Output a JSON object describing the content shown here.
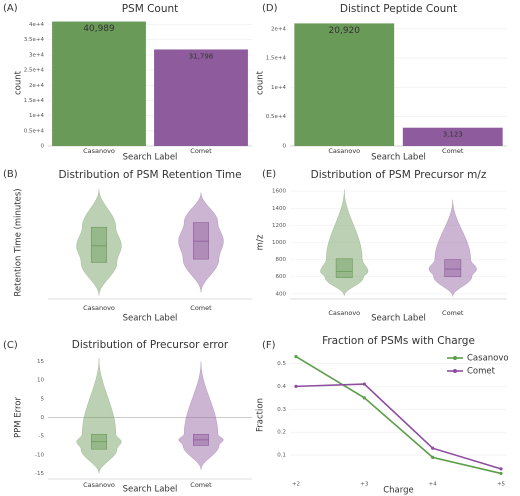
{
  "chart_data": [
    {
      "type": "bar",
      "label": "(A)",
      "title": "PSM Count",
      "xlabel": "Search Label",
      "ylabel": "count",
      "categories": [
        "Casanovo",
        "Comet"
      ],
      "values": [
        40989,
        31798
      ],
      "value_labels": [
        "40,989",
        "31,798"
      ],
      "colors": [
        "#6a9a58",
        "#8e5b9c"
      ],
      "ylim": [
        0,
        41500
      ],
      "yticks": [
        0,
        {
          "value": 5000,
          "label": "0.5e+4"
        },
        {
          "value": 10000,
          "label": "1e+4"
        },
        {
          "value": 15000,
          "label": "1.5e+4"
        },
        {
          "value": 20000,
          "label": "2e+4"
        },
        {
          "value": 25000,
          "label": "2.5e+4"
        },
        {
          "value": 30000,
          "label": "3e+4"
        },
        {
          "value": 35000,
          "label": "3.5e+4"
        },
        {
          "value": 40000,
          "label": "4e+4"
        }
      ],
      "grid": true
    },
    {
      "type": "violin",
      "label": "(B)",
      "title": "Distribution of PSM Retention Time",
      "xlabel": "Search Label",
      "ylabel": "Retention Time (minutes)",
      "categories": [
        "Casanovo",
        "Comet"
      ],
      "colors": [
        "#6a9a58",
        "#8e5b9c"
      ],
      "min": [
        0,
        5
      ],
      "q1": [
        50,
        55
      ],
      "median": [
        75,
        82
      ],
      "q3": [
        103,
        110
      ],
      "max": [
        160,
        155
      ],
      "ylim": [
        -5,
        165
      ]
    },
    {
      "type": "violin",
      "label": "(C)",
      "title": "Distribution of Precursor error",
      "xlabel": "Search Label",
      "ylabel": "PPM Error",
      "categories": [
        "Casanovo",
        "Comet"
      ],
      "colors": [
        "#6a9a58",
        "#8e5b9c"
      ],
      "min": [
        -15,
        -14
      ],
      "q1": [
        -8.5,
        -7.5
      ],
      "median": [
        -6.5,
        -6
      ],
      "q3": [
        -4.5,
        -4.5
      ],
      "max": [
        16,
        15
      ],
      "ylim": [
        -16.5,
        16.5
      ],
      "yticks": [
        -15,
        -10,
        -5,
        0,
        5,
        10,
        15
      ],
      "hline": 0
    },
    {
      "type": "bar",
      "label": "(D)",
      "title": "Distinct Peptide Count",
      "xlabel": "Search Label",
      "ylabel": "count",
      "categories": [
        "Casanovo",
        "Comet"
      ],
      "values": [
        20920,
        3123
      ],
      "value_labels": [
        "20,920",
        "3,123"
      ],
      "colors": [
        "#6a9a58",
        "#8e5b9c"
      ],
      "ylim": [
        0,
        21500
      ],
      "yticks": [
        0,
        {
          "value": 5000,
          "label": "0.5e+4"
        },
        {
          "value": 10000,
          "label": "1e+4"
        },
        {
          "value": 15000,
          "label": "1.5e+4"
        },
        {
          "value": 20000,
          "label": "2e+4"
        }
      ],
      "grid": true
    },
    {
      "type": "violin",
      "label": "(E)",
      "title": "Distribution of PSM Precursor m/z",
      "xlabel": "Search Label",
      "ylabel": "m/z",
      "categories": [
        "Casanovo",
        "Comet"
      ],
      "colors": [
        "#6a9a58",
        "#8e5b9c"
      ],
      "min": [
        380,
        370
      ],
      "q1": [
        590,
        600
      ],
      "median": [
        660,
        690
      ],
      "q3": [
        810,
        800
      ],
      "max": [
        1620,
        1500
      ],
      "ylim": [
        340,
        1660
      ],
      "yticks": [
        400,
        600,
        800,
        1000,
        1200,
        1400,
        1600
      ],
      "grid": true
    },
    {
      "type": "line",
      "label": "(F)",
      "title": "Fraction of PSMs with Charge",
      "xlabel": "Charge",
      "ylabel": "Fraction",
      "categories": [
        "+2",
        "+3",
        "+4",
        "+5"
      ],
      "series": [
        {
          "name": "Casanovo",
          "color": "#5a9e4a",
          "values": [
            0.53,
            0.35,
            0.09,
            0.02
          ]
        },
        {
          "name": "Comet",
          "color": "#8e4ea0",
          "values": [
            0.4,
            0.41,
            0.13,
            0.04
          ]
        }
      ],
      "ylim": [
        0,
        0.55
      ],
      "yticks": [
        0.1,
        0.2,
        0.3,
        0.4,
        0.5
      ],
      "grid": true,
      "legend": "upper-right"
    }
  ]
}
